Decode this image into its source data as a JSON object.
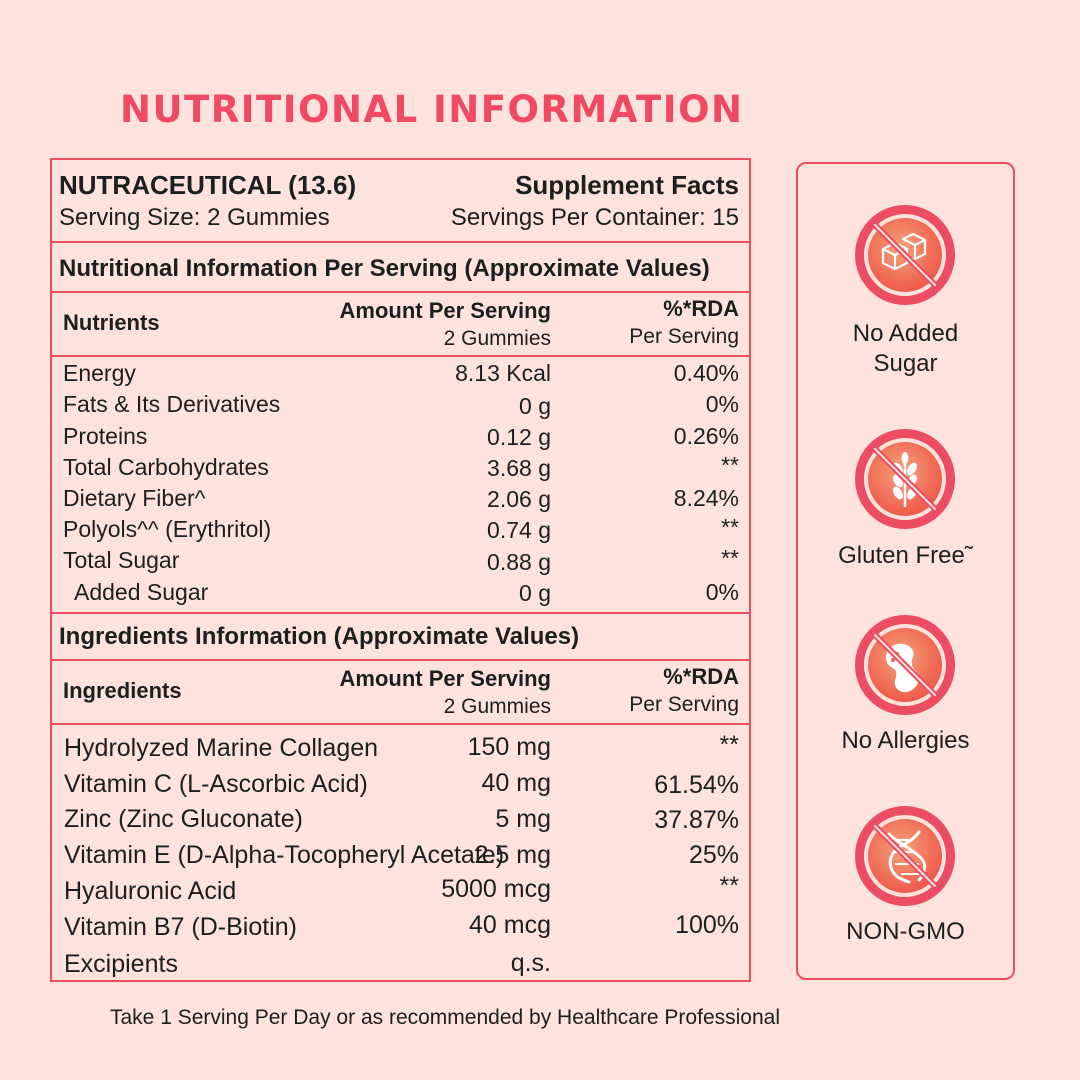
{
  "page_title": "NUTRITIONAL INFORMATION",
  "header": {
    "product": "NUTRACEUTICAL (13.6)",
    "facts_label": "Supplement Facts",
    "serving_size": "Serving Size: 2 Gummies",
    "servings_per_container": "Servings Per Container: 15"
  },
  "nutrition": {
    "section_title": "Nutritional Information Per Serving (Approximate Values)",
    "col_name": "Nutrients",
    "col_amount": "Amount Per Serving",
    "col_amount_sub": "2 Gummies",
    "col_rda": "%*RDA",
    "col_rda_sub": "Per Serving",
    "rows": [
      {
        "name": "Energy",
        "amount": "8.13 Kcal",
        "rda": "0.40%"
      },
      {
        "name": "Fats & Its Derivatives",
        "amount": "0 g",
        "rda": "0%"
      },
      {
        "name": "Proteins",
        "amount": "0.12 g",
        "rda": "0.26%"
      },
      {
        "name": "Total Carbohydrates",
        "amount": "3.68 g",
        "rda": "**"
      },
      {
        "name": "Dietary Fiber^",
        "amount": "2.06 g",
        "rda": "8.24%"
      },
      {
        "name": "Polyols^^ (Erythritol)",
        "amount": "0.74 g",
        "rda": "**"
      },
      {
        "name": "Total Sugar",
        "amount": "0.88 g",
        "rda": "**"
      },
      {
        "name": "Added Sugar",
        "amount": "0 g",
        "rda": "0%"
      }
    ]
  },
  "ingredients": {
    "section_title": "Ingredients Information (Approximate Values)",
    "col_name": "Ingredients",
    "col_amount": "Amount Per Serving",
    "col_amount_sub": "2 Gummies",
    "col_rda": "%*RDA",
    "col_rda_sub": "Per Serving",
    "rows": [
      {
        "name": "Hydrolyzed Marine Collagen",
        "amount": "150 mg",
        "rda": "**"
      },
      {
        "name": "Vitamin C (L-Ascorbic Acid)",
        "amount": "40 mg",
        "rda": "61.54%"
      },
      {
        "name": "Zinc (Zinc Gluconate)",
        "amount": "5 mg",
        "rda": "37.87%"
      },
      {
        "name": "Vitamin E (D-Alpha-Tocopheryl Acetate)",
        "amount": "2.5 mg",
        "rda": "25%"
      },
      {
        "name": "Hyaluronic Acid",
        "amount": "5000 mcg",
        "rda": "**"
      },
      {
        "name": "Vitamin B7 (D-Biotin)",
        "amount": "40 mcg",
        "rda": "100%"
      },
      {
        "name": "Excipients",
        "amount": "q.s.",
        "rda": ""
      }
    ]
  },
  "badges": [
    {
      "label_line1": "No Added",
      "label_line2": "Sugar",
      "icon": "sugar-cube-icon"
    },
    {
      "label_line1": "Gluten Free˜",
      "label_line2": "",
      "icon": "wheat-icon"
    },
    {
      "label_line1": "No Allergies",
      "label_line2": "",
      "icon": "peanut-icon"
    },
    {
      "label_line1": "NON-GMO",
      "label_line2": "",
      "icon": "dna-icon"
    }
  ],
  "footer_note": "Take 1 Serving Per Day or as recommended by Healthcare Professional",
  "colors": {
    "accent": "#ec4d63",
    "background": "#fde3dc",
    "icon_fill": "#f26650"
  }
}
